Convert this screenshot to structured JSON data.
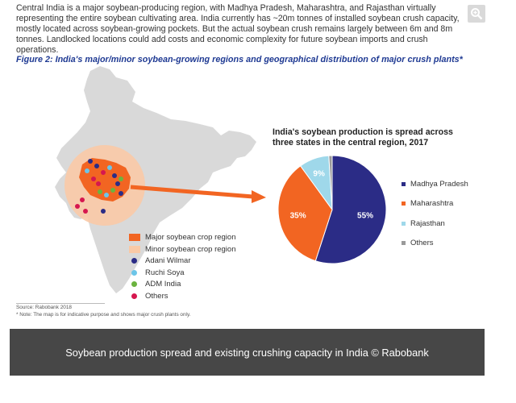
{
  "intro_text": "Central India is a major soybean-producing region, with Madhya Pradesh, Maharashtra, and Rajasthan virtually representing the entire soybean cultivating area. India currently has ~20m tonnes of installed soybean crush capacity, mostly located across soybean-growing pockets. But the actual soybean crush remains largely between 6m and 8m tonnes. Landlocked locations could add costs and economic complexity for future soybean imports and crush operations.",
  "figure_title": "Figure 2: India's major/minor soybean-growing regions and geographical distribution of major crush plants*",
  "zoom_icon": "magnifier-plus-icon",
  "map": {
    "legend": [
      {
        "label": "Major soybean crop region",
        "color": "#f26522",
        "kind": "box"
      },
      {
        "label": "Minor soybean crop region",
        "color": "#f9c9a6",
        "kind": "box"
      },
      {
        "label": "Adani Wilmar",
        "color": "#2b2c86",
        "kind": "dot"
      },
      {
        "label": "Ruchi Soya",
        "color": "#6cc5e8",
        "kind": "dot"
      },
      {
        "label": "ADM India",
        "color": "#6bb33f",
        "kind": "dot"
      },
      {
        "label": "Others",
        "color": "#d6174f",
        "kind": "dot"
      }
    ],
    "colors": {
      "land": "#d9d9d9",
      "major": "#f26522",
      "minor": "#f9c9a6",
      "arrow": "#f26522"
    }
  },
  "chart_data": {
    "type": "pie",
    "title": "India's soybean production is spread across three states in the central region, 2017",
    "labels": [
      "Madhya Pradesh",
      "Maharashtra",
      "Rajasthan",
      "Others"
    ],
    "values": [
      55,
      35,
      9,
      1
    ],
    "data_labels": [
      "55%",
      "35%",
      "9%",
      ""
    ],
    "colors": [
      "#2b2c86",
      "#f26522",
      "#9fd8ea",
      "#9a9a9a"
    ],
    "legend_placement": "right"
  },
  "source": "Source: Rabobank 2018",
  "note": "* Note: The map is for indicative purpose and shows major crush plants only.",
  "caption": "Soybean production spread and existing crushing capacity in India © Rabobank"
}
